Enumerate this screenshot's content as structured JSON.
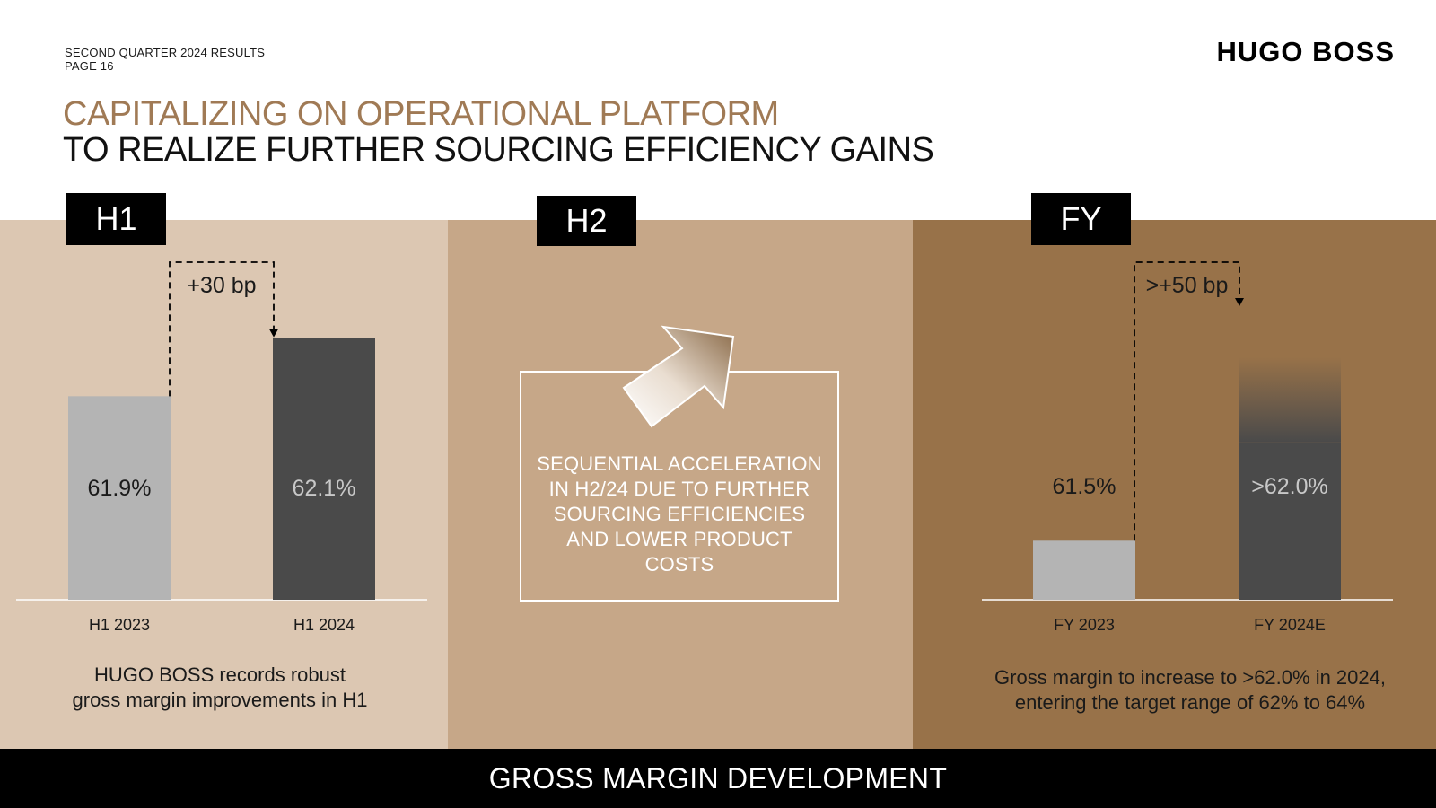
{
  "header": {
    "meta_line1": "SECOND QUARTER 2024 RESULTS",
    "meta_line2": "PAGE 16",
    "logo": "HUGO BOSS",
    "title_line1": "CAPITALIZING ON OPERATIONAL PLATFORM",
    "title_line2": "TO REALIZE FURTHER SOURCING EFFICIENCY GAINS"
  },
  "colors": {
    "accent_title": "#a07a55",
    "panel_h1": "#dcc7b2",
    "panel_h2": "#c6a788",
    "panel_fy": "#987249",
    "bar_prior": "#b4b4b4",
    "bar_current": "#4a4a4a"
  },
  "panels": {
    "h1": {
      "tag": "H1",
      "caption_line1": "HUGO BOSS records robust",
      "caption_line2": "gross margin improvements in H1"
    },
    "h2": {
      "tag": "H2",
      "arrow_icon": "up-right-arrow-icon",
      "text_lines": [
        "SEQUENTIAL ACCELERATION",
        "IN H2/24 DUE TO FURTHER",
        "SOURCING EFFICIENCIES",
        "AND LOWER PRODUCT",
        "COSTS"
      ]
    },
    "fy": {
      "tag": "FY",
      "caption_line1": "Gross margin to increase to >62.0% in 2024,",
      "caption_line2": "entering the target range of 62% to 64%"
    }
  },
  "chart_data": [
    {
      "type": "bar",
      "categories": [
        "H1 2023",
        "H1 2024"
      ],
      "values": [
        61.9,
        62.1
      ],
      "data_labels": [
        "61.9%",
        "62.1%"
      ],
      "annotation": "+30 bp",
      "colors": [
        "#b4b4b4",
        "#4a4a4a"
      ]
    },
    {
      "type": "bar",
      "categories": [
        "FY 2023",
        "FY 2024E"
      ],
      "values": [
        61.5,
        62.0
      ],
      "data_labels": [
        "61.5%",
        ">62.0%"
      ],
      "annotation": ">+50 bp",
      "colors": [
        "#b4b4b4",
        "#4a4a4a"
      ]
    }
  ],
  "footer": {
    "label": "GROSS MARGIN DEVELOPMENT"
  }
}
